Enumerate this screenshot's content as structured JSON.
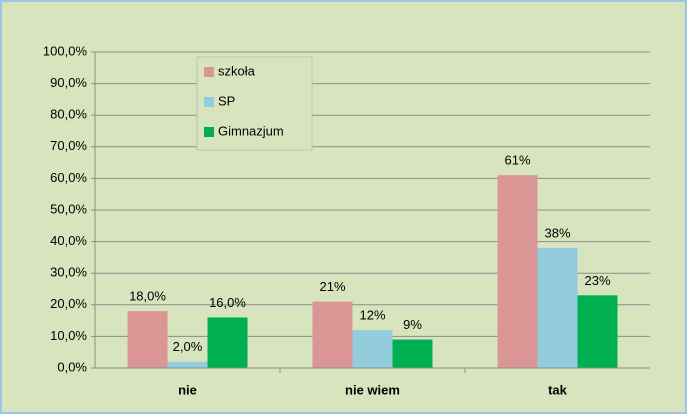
{
  "chart_data": {
    "type": "bar",
    "categories": [
      "nie",
      "nie wiem",
      "tak"
    ],
    "series": [
      {
        "name": "szkoła",
        "color": "#d99694",
        "values": [
          18,
          21,
          61
        ],
        "value_labels": [
          "18,0%",
          "21%",
          "61%"
        ]
      },
      {
        "name": "SP",
        "color": "#93cddd",
        "values": [
          2,
          12,
          38
        ],
        "value_labels": [
          "2,0%",
          "12%",
          "38%"
        ]
      },
      {
        "name": "Gimnazjum",
        "color": "#00b050",
        "values": [
          16,
          9,
          23
        ],
        "value_labels": [
          "16,0%",
          "9%",
          "23%"
        ]
      }
    ],
    "ylim": [
      0,
      100
    ],
    "yticks": [
      {
        "value": 0,
        "label": "0,0%"
      },
      {
        "value": 10,
        "label": "10,0%"
      },
      {
        "value": 20,
        "label": "20,0%"
      },
      {
        "value": 30,
        "label": "30,0%"
      },
      {
        "value": 40,
        "label": "40,0%"
      },
      {
        "value": 50,
        "label": "50,0%"
      },
      {
        "value": 60,
        "label": "60,0%"
      },
      {
        "value": 70,
        "label": "70,0%"
      },
      {
        "value": 80,
        "label": "80,0%"
      },
      {
        "value": 90,
        "label": "90,0%"
      },
      {
        "value": 100,
        "label": "100,0%"
      }
    ],
    "grid": true
  }
}
